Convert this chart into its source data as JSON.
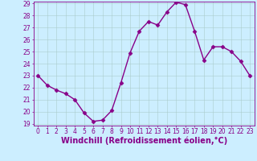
{
  "x": [
    0,
    1,
    2,
    3,
    4,
    5,
    6,
    7,
    8,
    9,
    10,
    11,
    12,
    13,
    14,
    15,
    16,
    17,
    18,
    19,
    20,
    21,
    22,
    23
  ],
  "y": [
    23,
    22.2,
    21.8,
    21.5,
    21.0,
    19.9,
    19.2,
    19.3,
    20.1,
    22.4,
    24.9,
    26.7,
    27.5,
    27.2,
    28.3,
    29.1,
    28.9,
    26.7,
    24.3,
    25.4,
    25.4,
    25.0,
    24.2,
    23.0
  ],
  "line_color": "#880088",
  "marker": "D",
  "markersize": 2.5,
  "linewidth": 1.0,
  "bg_color": "#cceeff",
  "grid_color": "#aacccc",
  "xlabel": "Windchill (Refroidissement éolien,°C)",
  "xlabel_fontsize": 7,
  "xlabel_color": "#880088",
  "ylim": [
    19,
    29
  ],
  "xlim": [
    -0.5,
    23.5
  ],
  "yticks": [
    19,
    20,
    21,
    22,
    23,
    24,
    25,
    26,
    27,
    28,
    29
  ],
  "xticks": [
    0,
    1,
    2,
    3,
    4,
    5,
    6,
    7,
    8,
    9,
    10,
    11,
    12,
    13,
    14,
    15,
    16,
    17,
    18,
    19,
    20,
    21,
    22,
    23
  ],
  "tick_fontsize": 5.5,
  "tick_color": "#880088"
}
